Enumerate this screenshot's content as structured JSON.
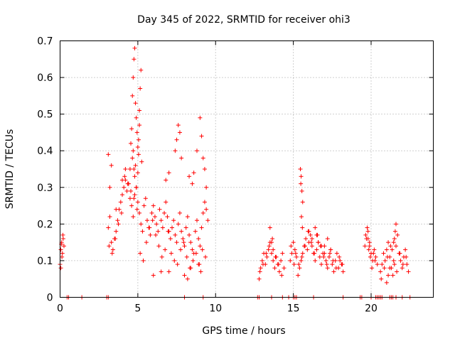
{
  "chart_data": {
    "type": "scatter",
    "title": "Day 345 of 2022, SRMTID for receiver ohi3",
    "xlabel": "GPS time / hours",
    "ylabel": "SRMTID / TECUs",
    "xlim": [
      0,
      24
    ],
    "ylim": [
      0,
      0.7
    ],
    "xticks": [
      0,
      5,
      10,
      15,
      20
    ],
    "yticks": [
      0,
      0.1,
      0.2,
      0.3,
      0.4,
      0.5,
      0.6,
      0.7
    ],
    "x_tick_labels": [
      "0",
      "5",
      "10",
      "15",
      "20"
    ],
    "y_tick_labels": [
      "0",
      "0.1",
      "0.2",
      "0.3",
      "0.4",
      "0.5",
      "0.6",
      "0.7"
    ],
    "grid": true,
    "marker": "+",
    "series": [
      {
        "name": "SRMTID",
        "color": "#ff0000",
        "x": [
          0.0,
          0.05,
          0.1,
          0.15,
          0.2,
          0.25,
          0.05,
          0.12,
          0.18,
          0.08,
          3.1,
          3.2,
          3.3,
          3.4,
          3.5,
          3.6,
          3.7,
          3.8,
          3.9,
          4.0,
          4.1,
          4.2,
          4.3,
          4.4,
          4.5,
          4.6,
          4.7,
          4.8,
          4.9,
          5.0,
          5.1,
          5.2,
          5.3,
          5.4,
          5.5,
          5.6,
          5.7,
          5.8,
          5.9,
          6.0,
          6.1,
          6.2,
          6.3,
          6.4,
          6.5,
          6.6,
          6.7,
          6.8,
          6.9,
          7.0,
          7.1,
          7.2,
          7.3,
          7.4,
          7.5,
          7.6,
          7.7,
          7.8,
          7.9,
          8.0,
          8.1,
          8.2,
          8.3,
          8.4,
          8.5,
          8.6,
          8.7,
          8.8,
          8.9,
          9.0,
          9.1,
          9.2,
          9.3,
          9.4,
          9.5,
          3.15,
          3.35,
          3.55,
          3.75,
          3.95,
          4.15,
          4.35,
          4.55,
          4.75,
          4.95,
          5.15,
          5.35,
          5.55,
          5.75,
          5.95,
          6.15,
          6.35,
          6.55,
          6.75,
          6.95,
          7.15,
          7.35,
          7.55,
          7.75,
          7.95,
          8.15,
          8.35,
          8.55,
          8.75,
          8.95,
          9.15,
          9.35,
          4.5,
          4.55,
          4.6,
          4.65,
          4.7,
          4.75,
          4.8,
          4.85,
          4.9,
          4.95,
          5.0,
          5.05,
          5.1,
          5.15,
          5.2,
          4.65,
          4.7,
          4.75,
          4.8,
          4.85,
          4.9,
          5.0,
          5.05,
          5.1,
          5.25,
          3.1,
          3.3,
          4.0,
          4.2,
          4.4,
          6.8,
          7.0,
          7.4,
          7.5,
          7.6,
          7.7,
          7.8,
          8.3,
          8.5,
          8.6,
          8.8,
          9.0,
          9.1,
          9.2,
          9.3,
          9.4,
          3.2,
          3.6,
          6.0,
          6.5,
          7.0,
          8.0,
          8.2,
          8.4,
          8.9,
          9.05,
          12.8,
          12.9,
          13.0,
          13.1,
          13.2,
          13.3,
          13.4,
          13.5,
          13.6,
          13.7,
          13.8,
          13.9,
          14.0,
          14.1,
          14.2,
          14.3,
          14.4,
          12.85,
          13.05,
          13.25,
          13.45,
          13.65,
          13.85,
          14.05,
          14.25,
          13.5,
          13.6,
          13.7,
          14.8,
          14.9,
          15.0,
          15.1,
          15.2,
          14.85,
          15.05,
          15.15,
          15.3,
          15.4,
          15.5,
          15.6,
          15.7,
          15.8,
          15.9,
          16.0,
          16.1,
          16.2,
          16.3,
          16.4,
          16.5,
          16.6,
          16.7,
          16.8,
          16.9,
          17.0,
          17.1,
          17.2,
          17.3,
          17.4,
          17.5,
          17.6,
          17.7,
          17.8,
          17.9,
          18.0,
          18.1,
          18.2,
          15.35,
          15.55,
          15.75,
          15.95,
          16.15,
          16.35,
          16.55,
          16.75,
          16.95,
          17.15,
          17.35,
          17.55,
          17.75,
          17.95,
          18.15,
          15.45,
          15.5,
          15.55,
          15.6,
          15.48,
          15.52,
          15.58,
          16.0,
          16.2,
          16.4,
          16.5,
          16.6,
          16.8,
          17.0,
          17.2,
          17.4,
          19.6,
          19.7,
          19.8,
          19.9,
          20.0,
          20.1,
          20.2,
          20.3,
          20.4,
          19.65,
          19.75,
          19.85,
          19.95,
          20.05,
          20.15,
          20.25,
          19.8,
          19.9,
          20.0,
          20.6,
          20.7,
          20.8,
          20.9,
          21.0,
          21.1,
          21.2,
          21.3,
          21.4,
          21.5,
          21.6,
          21.7,
          21.8,
          21.9,
          22.0,
          22.1,
          22.2,
          22.3,
          22.4,
          20.65,
          20.85,
          21.05,
          21.25,
          21.45,
          21.65,
          21.85,
          22.05,
          22.25,
          21.5,
          21.55,
          21.6,
          21.35,
          21.45,
          21.0,
          21.1,
          21.2,
          0.45,
          0.55,
          1.4,
          3.0,
          3.1,
          8.0,
          9.2,
          12.7,
          12.8,
          13.6,
          14.3,
          14.7,
          15.0,
          15.1,
          15.2,
          16.3,
          18.2,
          19.3,
          19.4,
          20.0,
          20.3,
          20.4,
          20.5,
          20.6,
          20.7,
          21.2,
          21.3,
          21.4,
          21.6,
          22.0,
          22.5
        ],
        "y": [
          0.09,
          0.13,
          0.15,
          0.12,
          0.16,
          0.14,
          0.08,
          0.11,
          0.17,
          0.145,
          0.19,
          0.22,
          0.15,
          0.13,
          0.16,
          0.18,
          0.21,
          0.24,
          0.26,
          0.28,
          0.3,
          0.32,
          0.29,
          0.31,
          0.27,
          0.25,
          0.22,
          0.28,
          0.3,
          0.26,
          0.23,
          0.2,
          0.18,
          0.25,
          0.27,
          0.21,
          0.19,
          0.17,
          0.23,
          0.25,
          0.22,
          0.2,
          0.18,
          0.24,
          0.21,
          0.19,
          0.23,
          0.26,
          0.22,
          0.18,
          0.16,
          0.19,
          0.21,
          0.17,
          0.15,
          0.2,
          0.23,
          0.18,
          0.16,
          0.14,
          0.19,
          0.22,
          0.17,
          0.15,
          0.13,
          0.12,
          0.18,
          0.21,
          0.16,
          0.14,
          0.19,
          0.23,
          0.26,
          0.24,
          0.21,
          0.14,
          0.12,
          0.16,
          0.2,
          0.23,
          0.33,
          0.31,
          0.29,
          0.27,
          0.24,
          0.12,
          0.1,
          0.15,
          0.19,
          0.21,
          0.17,
          0.14,
          0.11,
          0.13,
          0.18,
          0.12,
          0.1,
          0.09,
          0.13,
          0.15,
          0.11,
          0.08,
          0.1,
          0.12,
          0.09,
          0.13,
          0.11,
          0.35,
          0.42,
          0.46,
          0.55,
          0.6,
          0.65,
          0.68,
          0.53,
          0.49,
          0.45,
          0.41,
          0.39,
          0.47,
          0.57,
          0.62,
          0.38,
          0.4,
          0.35,
          0.33,
          0.36,
          0.3,
          0.34,
          0.43,
          0.51,
          0.37,
          0.39,
          0.36,
          0.32,
          0.35,
          0.31,
          0.32,
          0.34,
          0.4,
          0.43,
          0.47,
          0.45,
          0.38,
          0.33,
          0.31,
          0.34,
          0.4,
          0.49,
          0.44,
          0.38,
          0.35,
          0.3,
          0.3,
          0.24,
          0.06,
          0.07,
          0.07,
          0.06,
          0.05,
          0.08,
          0.09,
          0.07,
          0.05,
          0.08,
          0.1,
          0.12,
          0.09,
          0.11,
          0.13,
          0.15,
          0.12,
          0.1,
          0.08,
          0.11,
          0.09,
          0.07,
          0.1,
          0.12,
          0.08,
          0.07,
          0.09,
          0.12,
          0.14,
          0.16,
          0.11,
          0.09,
          0.06,
          0.19,
          0.15,
          0.13,
          0.1,
          0.12,
          0.15,
          0.13,
          0.11,
          0.14,
          0.09,
          0.12,
          0.06,
          0.08,
          0.1,
          0.12,
          0.14,
          0.16,
          0.13,
          0.15,
          0.17,
          0.14,
          0.12,
          0.1,
          0.13,
          0.15,
          0.11,
          0.09,
          0.12,
          0.14,
          0.1,
          0.08,
          0.11,
          0.13,
          0.09,
          0.07,
          0.1,
          0.12,
          0.08,
          0.1,
          0.09,
          0.07,
          0.09,
          0.11,
          0.14,
          0.18,
          0.15,
          0.12,
          0.17,
          0.14,
          0.11,
          0.09,
          0.12,
          0.1,
          0.08,
          0.11,
          0.09,
          0.35,
          0.33,
          0.29,
          0.26,
          0.31,
          0.22,
          0.19,
          0.18,
          0.16,
          0.19,
          0.17,
          0.15,
          0.14,
          0.12,
          0.16,
          0.13,
          0.14,
          0.16,
          0.18,
          0.15,
          0.12,
          0.1,
          0.13,
          0.11,
          0.09,
          0.17,
          0.19,
          0.13,
          0.11,
          0.08,
          0.12,
          0.1,
          0.16,
          0.14,
          0.12,
          0.07,
          0.09,
          0.12,
          0.1,
          0.13,
          0.15,
          0.11,
          0.08,
          0.06,
          0.09,
          0.14,
          0.17,
          0.12,
          0.1,
          0.08,
          0.11,
          0.13,
          0.09,
          0.07,
          0.05,
          0.08,
          0.11,
          0.14,
          0.1,
          0.07,
          0.12,
          0.09,
          0.11,
          0.16,
          0.18,
          0.2,
          0.13,
          0.15,
          0.04,
          0.06,
          0.08,
          0.0,
          0.0,
          0.0,
          0.0,
          0.0,
          0.0,
          0.0,
          0.0,
          0.0,
          0.0,
          0.0,
          0.0,
          0.0,
          0.0,
          0.0,
          0.0,
          0.0,
          0.0,
          0.0,
          0.0,
          0.0,
          0.0,
          0.0,
          0.0,
          0.0,
          0.0,
          0.0,
          0.0,
          0.0,
          0.0,
          0.0
        ]
      }
    ]
  }
}
